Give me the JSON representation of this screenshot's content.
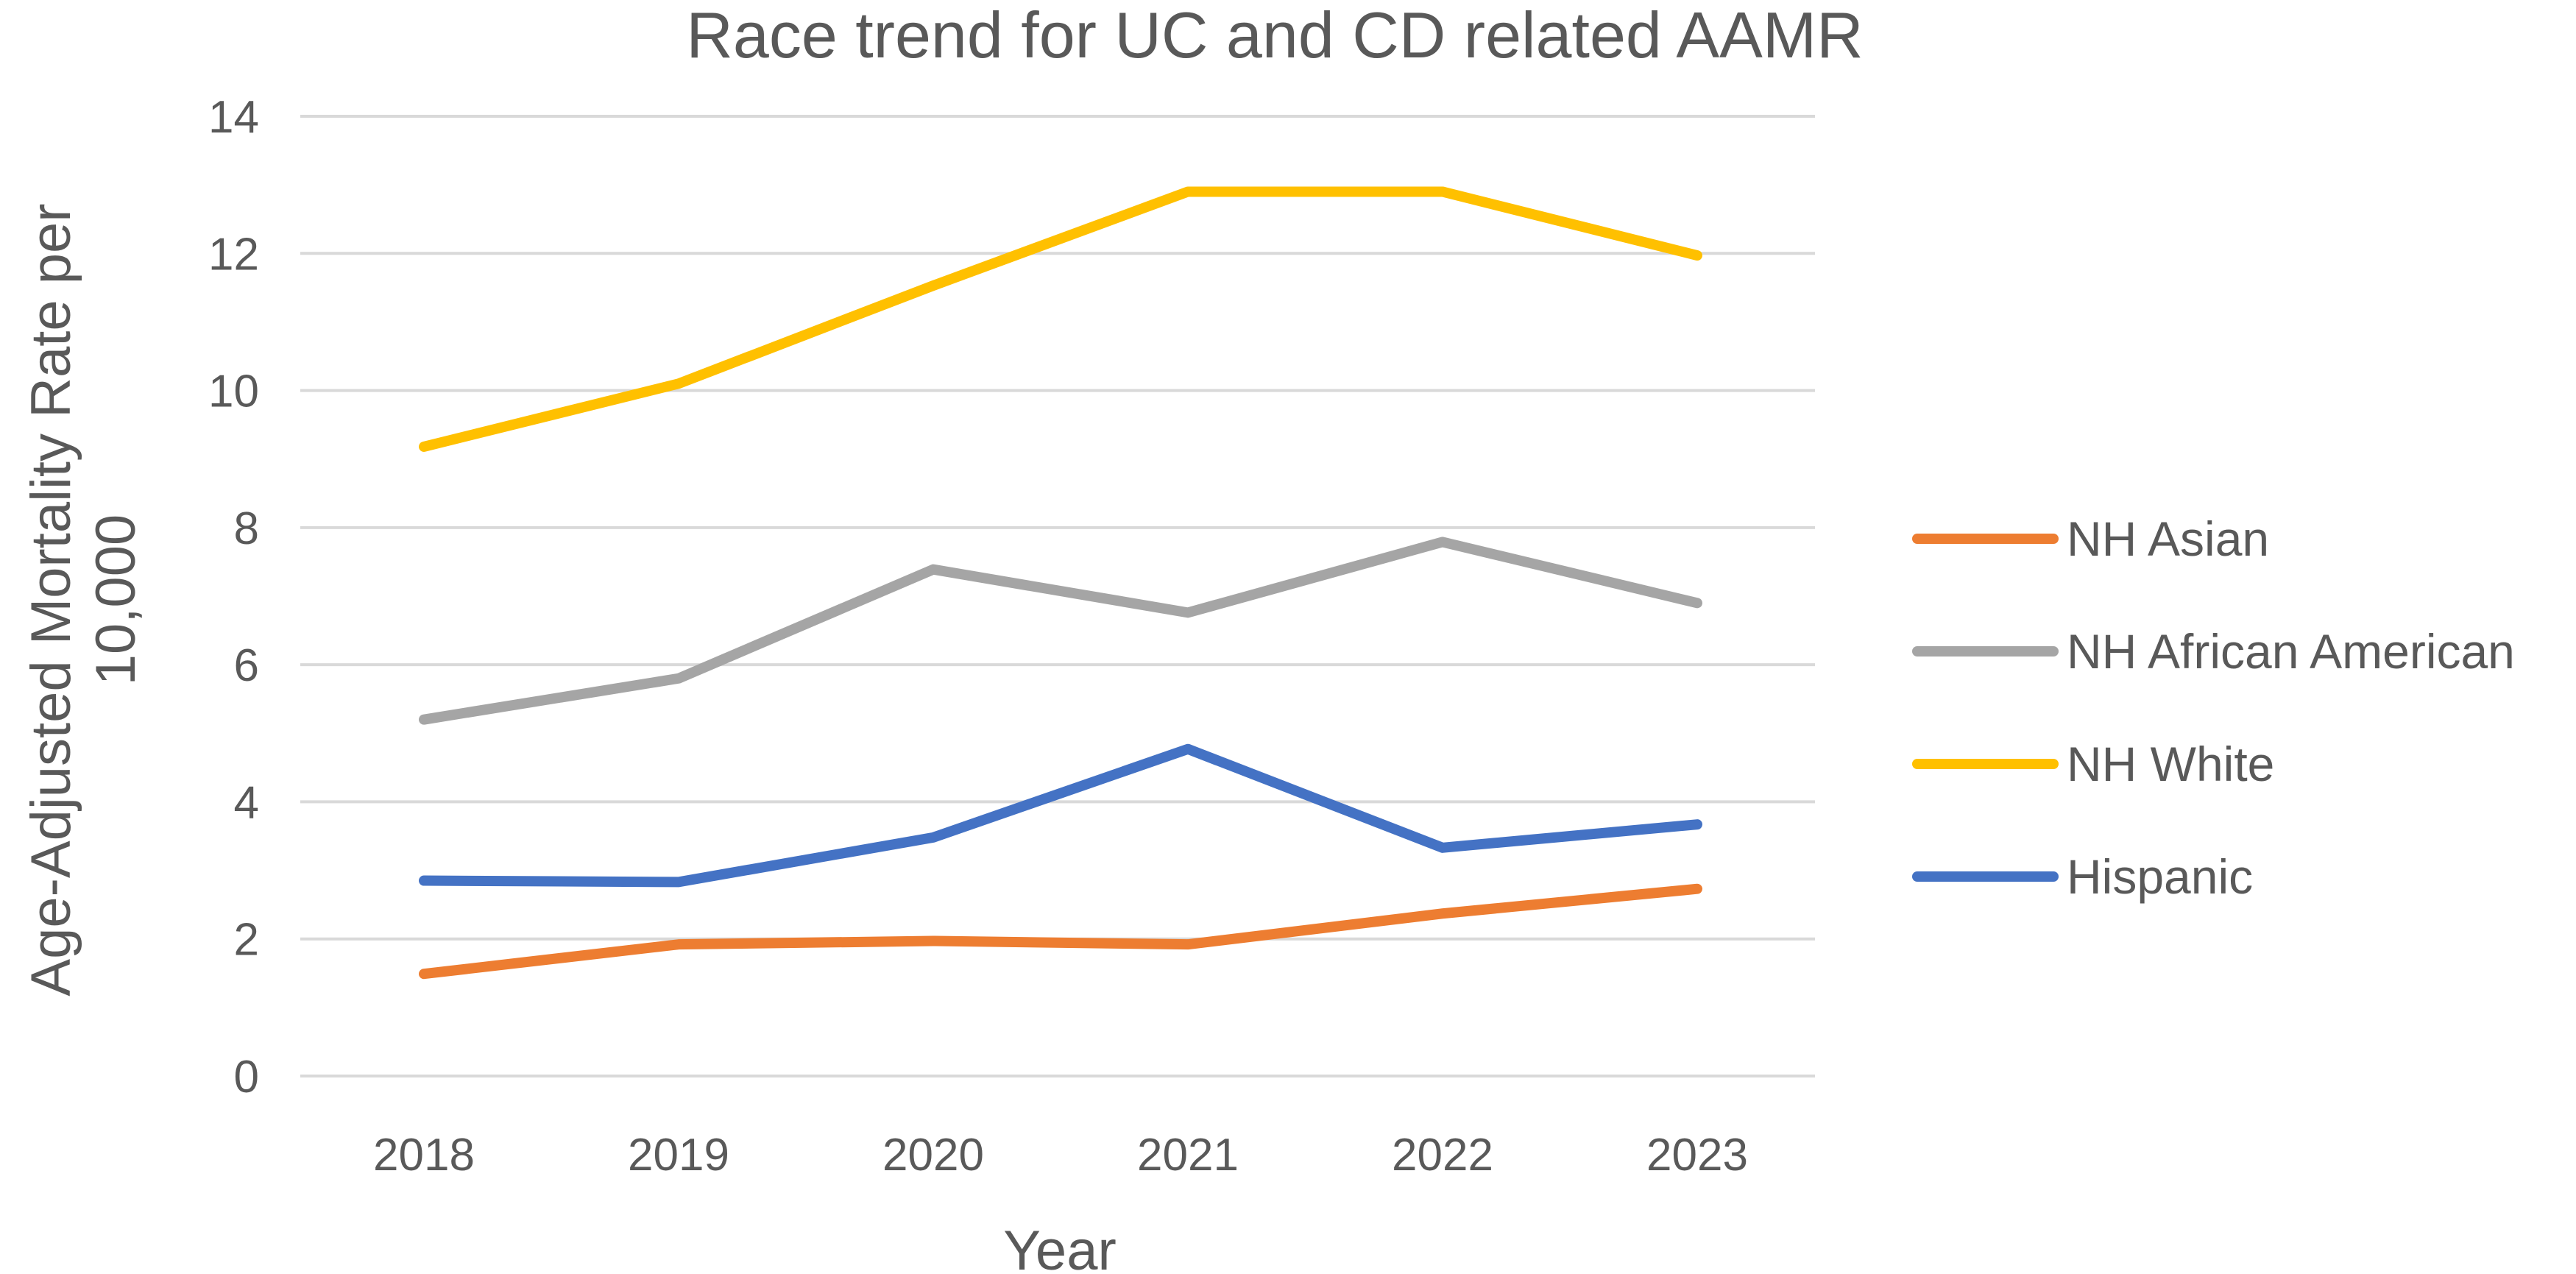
{
  "chart_data": {
    "type": "line",
    "title": "Race trend for UC and CD related AAMR",
    "xlabel": "Year",
    "ylabel": "Age-Adjusted Mortality Rate per 10,000",
    "ylabel_lines": [
      "Age-Adjusted Mortality Rate per",
      "10,000"
    ],
    "categories": [
      "2018",
      "2019",
      "2020",
      "2021",
      "2022",
      "2023"
    ],
    "ylim": [
      0,
      14
    ],
    "yticks": [
      0,
      2,
      4,
      6,
      8,
      10,
      12,
      14
    ],
    "grid": true,
    "legend_position": "right",
    "series": [
      {
        "name": "NH Asian",
        "color": "#ED7D31",
        "values": [
          1.49,
          1.92,
          1.97,
          1.92,
          2.37,
          2.73
        ]
      },
      {
        "name": "NH African American",
        "color": "#A5A5A5",
        "values": [
          5.2,
          5.8,
          7.39,
          6.76,
          7.79,
          6.9
        ]
      },
      {
        "name": "NH White",
        "color": "#FFC000",
        "values": [
          9.18,
          10.1,
          11.53,
          12.9,
          12.9,
          11.97
        ]
      },
      {
        "name": "Hispanic",
        "color": "#4472C4",
        "values": [
          2.85,
          2.83,
          3.48,
          4.77,
          3.33,
          3.67
        ]
      }
    ]
  }
}
